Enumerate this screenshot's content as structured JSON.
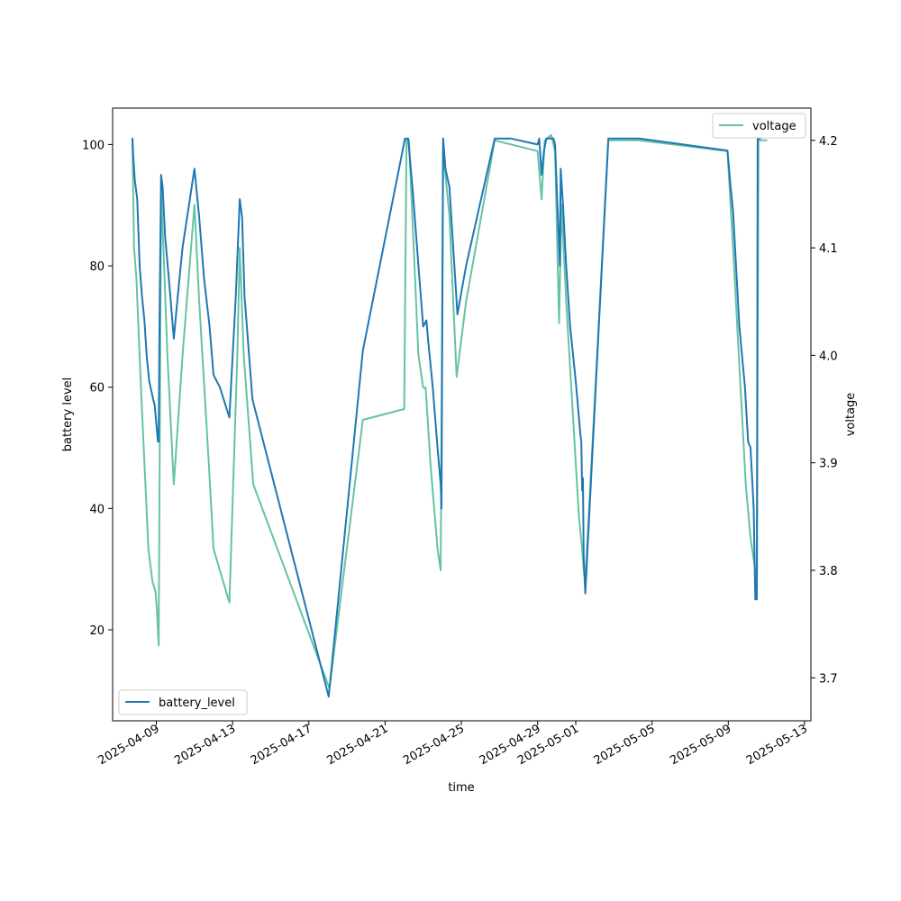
{
  "chart_data": {
    "type": "line",
    "title": "",
    "xlabel": "time",
    "ylabel_left": "battery level",
    "ylabel_right": "voltage",
    "xlim": [
      "2025-04-06T17:00",
      "2025-05-13T08:00"
    ],
    "ylim_left": [
      5,
      106
    ],
    "ylim_right": [
      3.66,
      4.23
    ],
    "x_ticks": [
      "2025-04-09",
      "2025-04-13",
      "2025-04-17",
      "2025-04-21",
      "2025-04-25",
      "2025-04-29",
      "2025-05-01",
      "2025-05-05",
      "2025-05-09",
      "2025-05-13"
    ],
    "y_ticks_left": [
      20,
      40,
      60,
      80,
      100
    ],
    "y_ticks_right": [
      3.7,
      3.8,
      3.9,
      4.0,
      4.1,
      4.2
    ],
    "grid": false,
    "colors": {
      "battery_level": "#1f77b4",
      "voltage": "#66c2a5"
    },
    "series": [
      {
        "name": "battery_level",
        "axis": "left",
        "legend_position": "lower-left",
        "points": [
          [
            "2025-04-07T18:00",
            101
          ],
          [
            "2025-04-07T19:00",
            98
          ],
          [
            "2025-04-07T21:00",
            94
          ],
          [
            "2025-04-08T00:00",
            91
          ],
          [
            "2025-04-08T03:00",
            80
          ],
          [
            "2025-04-08T06:00",
            75
          ],
          [
            "2025-04-08T09:00",
            71
          ],
          [
            "2025-04-08T12:00",
            65
          ],
          [
            "2025-04-08T15:00",
            61
          ],
          [
            "2025-04-08T20:00",
            58
          ],
          [
            "2025-04-08T22:00",
            57
          ],
          [
            "2025-04-09T00:00",
            54
          ],
          [
            "2025-04-09T02:00",
            51
          ],
          [
            "2025-04-09T03:00",
            51
          ],
          [
            "2025-04-09T04:00",
            70
          ],
          [
            "2025-04-09T06:00",
            95
          ],
          [
            "2025-04-09T08:00",
            93
          ],
          [
            "2025-04-09T11:00",
            85
          ],
          [
            "2025-04-09T17:00",
            76
          ],
          [
            "2025-04-09T22:00",
            68
          ],
          [
            "2025-04-10T03:00",
            75
          ],
          [
            "2025-04-10T09:00",
            83
          ],
          [
            "2025-04-11T00:00",
            96
          ],
          [
            "2025-04-11T06:00",
            88
          ],
          [
            "2025-04-11T12:00",
            78
          ],
          [
            "2025-04-11T19:00",
            70
          ],
          [
            "2025-04-12T00:00",
            62
          ],
          [
            "2025-04-12T08:00",
            60
          ],
          [
            "2025-04-12T20:00",
            55
          ],
          [
            "2025-04-13T04:00",
            75
          ],
          [
            "2025-04-13T09:00",
            91
          ],
          [
            "2025-04-13T12:00",
            88
          ],
          [
            "2025-04-13T15:00",
            75
          ],
          [
            "2025-04-14T01:00",
            58
          ],
          [
            "2025-04-18T01:00",
            9
          ],
          [
            "2025-04-19T20:00",
            66
          ],
          [
            "2025-04-22T01:00",
            101
          ],
          [
            "2025-04-22T05:00",
            101
          ],
          [
            "2025-04-22T11:00",
            92
          ],
          [
            "2025-04-22T18:00",
            80
          ],
          [
            "2025-04-23T00:00",
            70
          ],
          [
            "2025-04-23T04:00",
            71
          ],
          [
            "2025-04-23T06:00",
            68
          ],
          [
            "2025-04-23T12:00",
            60
          ],
          [
            "2025-04-23T18:00",
            50
          ],
          [
            "2025-04-23T22:00",
            44
          ],
          [
            "2025-04-23T23:00",
            40
          ],
          [
            "2025-04-24T01:00",
            101
          ],
          [
            "2025-04-24T04:00",
            96
          ],
          [
            "2025-04-24T09:00",
            93
          ],
          [
            "2025-04-24T19:00",
            72
          ],
          [
            "2025-04-25T06:00",
            80
          ],
          [
            "2025-04-26T18:00",
            101
          ],
          [
            "2025-04-27T14:00",
            101
          ],
          [
            "2025-04-29T00:00",
            100
          ],
          [
            "2025-04-29T02:00",
            101
          ],
          [
            "2025-04-29T05:00",
            95
          ],
          [
            "2025-04-29T08:00",
            99
          ],
          [
            "2025-04-29T11:00",
            101
          ],
          [
            "2025-04-29T17:00",
            101
          ],
          [
            "2025-04-29T20:00",
            101
          ],
          [
            "2025-04-29T22:00",
            100
          ],
          [
            "2025-04-30T00:00",
            93
          ],
          [
            "2025-04-30T04:00",
            80
          ],
          [
            "2025-04-30T05:00",
            96
          ],
          [
            "2025-04-30T08:00",
            90
          ],
          [
            "2025-04-30T12:00",
            80
          ],
          [
            "2025-04-30T17:00",
            70
          ],
          [
            "2025-05-01T00:00",
            61
          ],
          [
            "2025-05-01T06:00",
            52
          ],
          [
            "2025-05-01T07:00",
            51
          ],
          [
            "2025-05-01T08:00",
            43
          ],
          [
            "2025-05-01T09:00",
            45
          ],
          [
            "2025-05-01T10:00",
            32
          ],
          [
            "2025-05-01T12:00",
            26
          ],
          [
            "2025-05-02T17:00",
            101
          ],
          [
            "2025-05-04T08:00",
            101
          ],
          [
            "2025-05-08T23:00",
            99
          ],
          [
            "2025-05-09T03:00",
            93
          ],
          [
            "2025-05-09T06:00",
            89
          ],
          [
            "2025-05-09T14:00",
            70
          ],
          [
            "2025-05-09T21:00",
            60
          ],
          [
            "2025-05-10T01:00",
            51
          ],
          [
            "2025-05-10T04:00",
            50
          ],
          [
            "2025-05-10T08:00",
            40
          ],
          [
            "2025-05-10T10:00",
            25
          ],
          [
            "2025-05-10T12:00",
            25
          ],
          [
            "2025-05-10T13:00",
            101
          ],
          [
            "2025-05-10T16:00",
            101
          ]
        ]
      },
      {
        "name": "voltage",
        "axis": "right",
        "legend_position": "upper-right",
        "points": [
          [
            "2025-04-07T18:00",
            4.2
          ],
          [
            "2025-04-07T20:00",
            4.1
          ],
          [
            "2025-04-07T23:00",
            4.07
          ],
          [
            "2025-04-08T04:00",
            3.98
          ],
          [
            "2025-04-08T09:00",
            3.9
          ],
          [
            "2025-04-08T14:00",
            3.82
          ],
          [
            "2025-04-08T19:00",
            3.79
          ],
          [
            "2025-04-08T23:00",
            3.78
          ],
          [
            "2025-04-09T01:00",
            3.76
          ],
          [
            "2025-04-09T03:00",
            3.73
          ],
          [
            "2025-04-09T04:00",
            3.87
          ],
          [
            "2025-04-09T06:00",
            4.15
          ],
          [
            "2025-04-09T09:00",
            4.1
          ],
          [
            "2025-04-09T14:00",
            4.0
          ],
          [
            "2025-04-09T22:00",
            3.88
          ],
          [
            "2025-04-10T09:00",
            4.0
          ],
          [
            "2025-04-11T00:00",
            4.14
          ],
          [
            "2025-04-11T06:00",
            4.05
          ],
          [
            "2025-04-11T18:00",
            3.9
          ],
          [
            "2025-04-12T00:00",
            3.82
          ],
          [
            "2025-04-12T20:00",
            3.77
          ],
          [
            "2025-04-13T06:00",
            4.0
          ],
          [
            "2025-04-13T09:00",
            4.1
          ],
          [
            "2025-04-13T14:00",
            4.0
          ],
          [
            "2025-04-14T02:00",
            3.88
          ],
          [
            "2025-04-18T02:00",
            3.69
          ],
          [
            "2025-04-19T20:00",
            3.94
          ],
          [
            "2025-04-22T00:00",
            3.95
          ],
          [
            "2025-04-22T03:00",
            4.2
          ],
          [
            "2025-04-22T06:00",
            4.2
          ],
          [
            "2025-04-22T12:00",
            4.1
          ],
          [
            "2025-04-22T18:00",
            4.0
          ],
          [
            "2025-04-23T00:00",
            3.97
          ],
          [
            "2025-04-23T03:00",
            3.97
          ],
          [
            "2025-04-23T09:00",
            3.9
          ],
          [
            "2025-04-23T18:00",
            3.82
          ],
          [
            "2025-04-23T22:00",
            3.8
          ],
          [
            "2025-04-24T01:00",
            4.19
          ],
          [
            "2025-04-24T09:00",
            4.13
          ],
          [
            "2025-04-24T18:00",
            3.98
          ],
          [
            "2025-04-25T06:00",
            4.05
          ],
          [
            "2025-04-26T18:00",
            4.2
          ],
          [
            "2025-04-29T00:00",
            4.19
          ],
          [
            "2025-04-29T05:00",
            4.145
          ],
          [
            "2025-04-29T09:00",
            4.2
          ],
          [
            "2025-04-29T17:00",
            4.205
          ],
          [
            "2025-04-29T22:00",
            4.19
          ],
          [
            "2025-04-30T03:00",
            4.03
          ],
          [
            "2025-04-30T06:00",
            4.14
          ],
          [
            "2025-04-30T12:00",
            4.05
          ],
          [
            "2025-04-30T20:00",
            3.95
          ],
          [
            "2025-05-01T04:00",
            3.85
          ],
          [
            "2025-05-01T08:00",
            3.82
          ],
          [
            "2025-05-01T10:00",
            3.8
          ],
          [
            "2025-05-01T12:00",
            3.79
          ],
          [
            "2025-05-02T17:00",
            4.2
          ],
          [
            "2025-05-03T12:00",
            4.2
          ],
          [
            "2025-05-04T08:00",
            4.2
          ],
          [
            "2025-05-08T23:00",
            4.19
          ],
          [
            "2025-05-09T06:00",
            4.1
          ],
          [
            "2025-05-09T14:00",
            3.99
          ],
          [
            "2025-05-09T22:00",
            3.88
          ],
          [
            "2025-05-10T04:00",
            3.83
          ],
          [
            "2025-05-10T10:00",
            3.8
          ],
          [
            "2025-05-10T12:00",
            3.78
          ],
          [
            "2025-05-10T14:00",
            4.2
          ],
          [
            "2025-05-11T00:00",
            4.2
          ]
        ]
      }
    ]
  }
}
